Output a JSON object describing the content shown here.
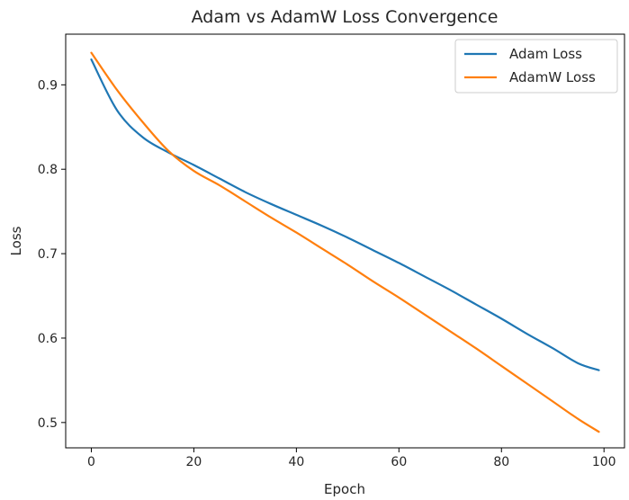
{
  "chart_data": {
    "type": "line",
    "title": "Adam vs AdamW Loss Convergence",
    "xlabel": "Epoch",
    "ylabel": "Loss",
    "xlim": [
      -5,
      104
    ],
    "ylim": [
      0.47,
      0.96
    ],
    "xticks": [
      0,
      20,
      40,
      60,
      80,
      100
    ],
    "yticks": [
      0.5,
      0.6,
      0.7,
      0.8,
      0.9
    ],
    "xtick_labels": [
      "0",
      "20",
      "40",
      "60",
      "80",
      "100"
    ],
    "ytick_labels": [
      "0.5",
      "0.6",
      "0.7",
      "0.8",
      "0.9"
    ],
    "grid": false,
    "legend_position": "top-right",
    "x": [
      0,
      5,
      10,
      15,
      20,
      25,
      30,
      35,
      40,
      45,
      50,
      55,
      60,
      65,
      70,
      75,
      80,
      85,
      90,
      95,
      99
    ],
    "series": [
      {
        "name": "Adam Loss",
        "color": "#1f77b4",
        "values": [
          0.93,
          0.87,
          0.838,
          0.82,
          0.805,
          0.789,
          0.773,
          0.759,
          0.746,
          0.733,
          0.719,
          0.704,
          0.689,
          0.673,
          0.657,
          0.64,
          0.623,
          0.605,
          0.588,
          0.57,
          0.562
        ]
      },
      {
        "name": "AdamW Loss",
        "color": "#ff7f0e",
        "values": [
          0.938,
          0.894,
          0.856,
          0.822,
          0.798,
          0.781,
          0.762,
          0.743,
          0.725,
          0.706,
          0.687,
          0.667,
          0.648,
          0.628,
          0.608,
          0.588,
          0.567,
          0.546,
          0.525,
          0.504,
          0.489
        ]
      }
    ]
  }
}
